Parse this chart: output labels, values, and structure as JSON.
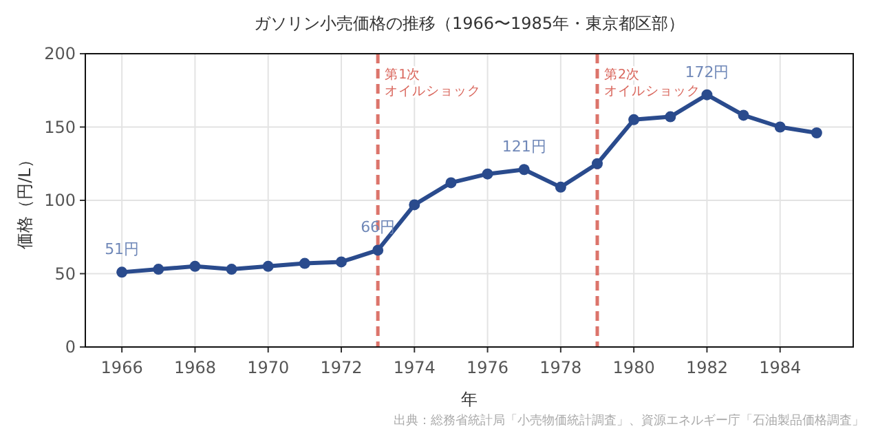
{
  "chart_data": {
    "type": "line",
    "title": "ガソリン小売価格の推移（1966〜1985年・東京都区部）",
    "xlabel": "年",
    "ylabel": "価格（円/L）",
    "x": [
      1966,
      1967,
      1968,
      1969,
      1970,
      1971,
      1972,
      1973,
      1974,
      1975,
      1976,
      1977,
      1978,
      1979,
      1980,
      1981,
      1982,
      1983,
      1984,
      1985
    ],
    "series": [
      {
        "color": "#2a4b8d",
        "values": [
          51,
          53,
          55,
          53,
          55,
          57,
          58,
          66,
          97,
          112,
          118,
          121,
          109,
          125,
          155,
          157,
          172,
          158,
          150,
          146
        ]
      }
    ],
    "xlim": [
      1965,
      1986
    ],
    "xticks": [
      1966,
      1968,
      1970,
      1972,
      1974,
      1976,
      1978,
      1980,
      1982,
      1984
    ],
    "ylim": [
      0,
      200
    ],
    "yticks": [
      0,
      50,
      100,
      150,
      200
    ],
    "grid": true,
    "marker": "circle",
    "line_style": "solid",
    "ref_lines": [
      {
        "axis": "x",
        "value": 1973,
        "label": "第1次オイルショック",
        "color": "#d9665c",
        "line_style": "dashed"
      },
      {
        "axis": "x",
        "value": 1979,
        "label": "第2次オイルショック",
        "color": "#d9665c",
        "line_style": "dashed"
      }
    ],
    "annotations": [
      {
        "text": "51円",
        "x": 1966,
        "y": 51
      },
      {
        "text": "66円",
        "x": 1973,
        "y": 66
      },
      {
        "text": "121円",
        "x": 1977,
        "y": 121
      },
      {
        "text": "172円",
        "x": 1982,
        "y": 172
      },
      "出典：総務省統計局「小売物価統計調査」、資源エネルギー庁「石油製品価格調査」"
    ]
  }
}
